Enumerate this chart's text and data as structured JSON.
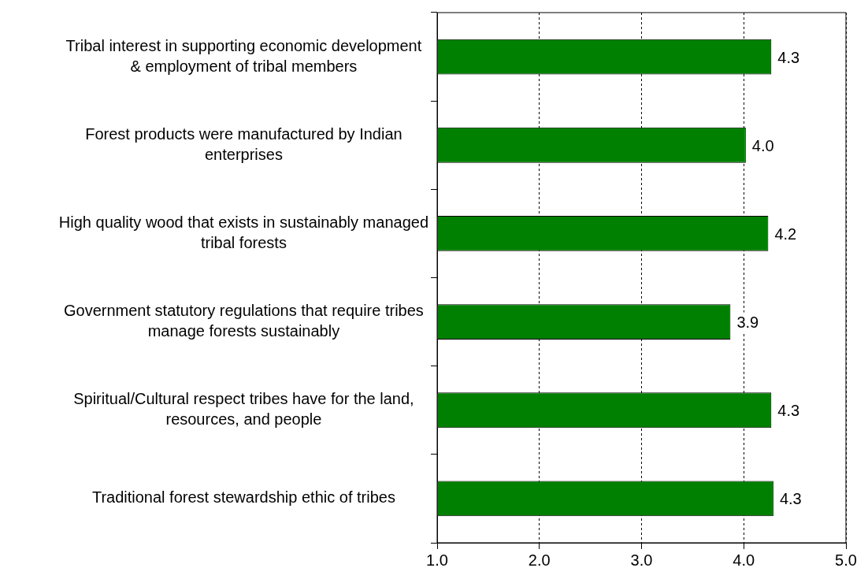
{
  "chart_data": {
    "type": "bar",
    "orientation": "horizontal",
    "categories": [
      "Tribal interest in supporting economic development & employment of tribal members",
      "Forest products were manufactured by Indian enterprises",
      "High quality wood that exists in sustainably managed tribal forests",
      "Government statutory regulations that require tribes manage forests sustainably",
      "Spiritual/Cultural respect tribes have for the land, resources, and people",
      "Traditional forest stewardship ethic of tribes"
    ],
    "values": [
      4.27,
      4.02,
      4.24,
      3.87,
      4.27,
      4.29
    ],
    "value_labels": [
      "4.3",
      "4.0",
      "4.2",
      "3.9",
      "4.3",
      "4.3"
    ],
    "color": "#008000",
    "xlim": [
      1,
      5
    ],
    "xticks": [
      {
        "value": 1,
        "label": "1.0"
      },
      {
        "value": 2,
        "label": "2.0"
      },
      {
        "value": 3,
        "label": "3.0"
      },
      {
        "value": 4,
        "label": "4.0"
      },
      {
        "value": 5,
        "label": "5.0"
      }
    ],
    "grid": "x",
    "legend": false
  }
}
